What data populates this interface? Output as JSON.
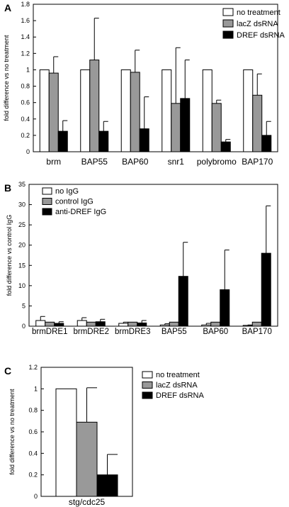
{
  "chart_data": [
    {
      "panel": "A",
      "type": "bar",
      "ylabel": "fold difference vs no treatment",
      "ylim": [
        0,
        1.8
      ],
      "yticks": [
        "0",
        "0.2",
        "0.4",
        "0.6",
        "0.8",
        "1",
        "1.2",
        "1.4",
        "1.6",
        "1.8"
      ],
      "categories": [
        "brm",
        "BAP55",
        "BAP60",
        "snr1",
        "polybromo",
        "BAP170"
      ],
      "legend_position": "top-right",
      "series": [
        {
          "name": "no treatment",
          "color": "#ffffff",
          "values": [
            1,
            1,
            1,
            1,
            1,
            1
          ],
          "errors": [
            0,
            0,
            0,
            0,
            0,
            0
          ]
        },
        {
          "name": "lacZ dsRNA",
          "color": "#999999",
          "values": [
            0.96,
            1.12,
            0.97,
            0.59,
            0.59,
            0.69
          ],
          "errors": [
            0.2,
            0.51,
            0.27,
            0.68,
            0.04,
            0.26
          ]
        },
        {
          "name": "DREF dsRNA",
          "color": "#000000",
          "values": [
            0.25,
            0.25,
            0.28,
            0.65,
            0.12,
            0.2
          ],
          "errors": [
            0.13,
            0.12,
            0.39,
            0.47,
            0.03,
            0.17
          ]
        }
      ]
    },
    {
      "panel": "B",
      "type": "bar",
      "ylabel": "fold difference vs control IgG",
      "ylim": [
        0,
        35
      ],
      "yticks": [
        "0",
        "5",
        "10",
        "15",
        "20",
        "25",
        "30",
        "35"
      ],
      "categories": [
        "brmDRE1",
        "brmDRE2",
        "brmDRE3",
        "BAP55",
        "BAP60",
        "BAP170"
      ],
      "legend_position": "top-left",
      "series": [
        {
          "name": "no IgG",
          "color": "#ffffff",
          "values": [
            1.4,
            1.4,
            0.7,
            0.3,
            0.3,
            0.2
          ],
          "errors": [
            1.0,
            0.7,
            0.3,
            0.3,
            0.4,
            0.1
          ]
        },
        {
          "name": "control IgG",
          "color": "#999999",
          "values": [
            1,
            1,
            1,
            1,
            1,
            1
          ],
          "errors": [
            0,
            0,
            0,
            0,
            0,
            0
          ]
        },
        {
          "name": "anti-DREF IgG",
          "color": "#000000",
          "values": [
            0.7,
            1.1,
            0.8,
            12.3,
            9.0,
            18.0
          ],
          "errors": [
            0.4,
            0.6,
            0.6,
            8.4,
            9.8,
            11.7
          ]
        }
      ]
    },
    {
      "panel": "C",
      "type": "bar",
      "ylabel": "fold difference vs no treatment",
      "ylim": [
        0,
        1.2
      ],
      "yticks": [
        "0",
        "0.2",
        "0.4",
        "0.6",
        "0.8",
        "1",
        "1.2"
      ],
      "categories": [
        "stg/cdc25"
      ],
      "legend_position": "right",
      "series": [
        {
          "name": "no treatment",
          "color": "#ffffff",
          "values": [
            1
          ],
          "errors": [
            0
          ]
        },
        {
          "name": "lacZ dsRNA",
          "color": "#999999",
          "values": [
            0.69
          ],
          "errors": [
            0.32
          ]
        },
        {
          "name": "DREF dsRNA",
          "color": "#000000",
          "values": [
            0.2
          ],
          "errors": [
            0.19
          ]
        }
      ]
    }
  ]
}
